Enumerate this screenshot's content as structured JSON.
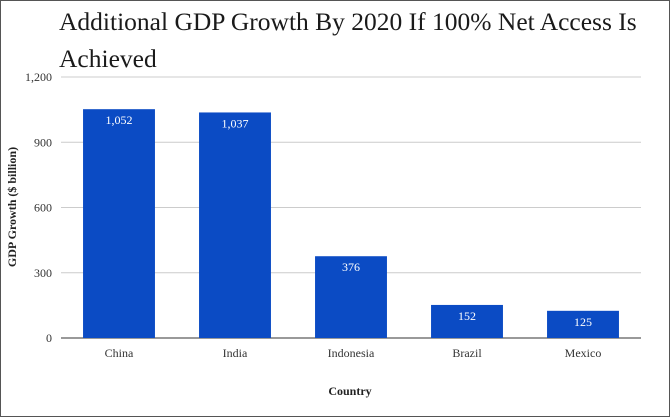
{
  "chart_data": {
    "type": "bar",
    "title": "Additional GDP Growth By 2020 If 100% Net Access Is Achieved",
    "xlabel": "Country",
    "ylabel": "GDP Growth ($ billion)",
    "categories": [
      "China",
      "India",
      "Indonesia",
      "Brazil",
      "Mexico"
    ],
    "values": [
      1052,
      1037,
      376,
      152,
      125
    ],
    "data_labels": [
      "1,052",
      "1,037",
      "376",
      "152",
      "125"
    ],
    "yticks": [
      "0",
      "300",
      "600",
      "900",
      "1,200"
    ],
    "ytick_values": [
      0,
      300,
      600,
      900,
      1200
    ],
    "ylim": [
      0,
      1200
    ],
    "grid": true,
    "legend": "none",
    "bar_color": "#0b4bc4",
    "grid_color": "#cccccc"
  }
}
